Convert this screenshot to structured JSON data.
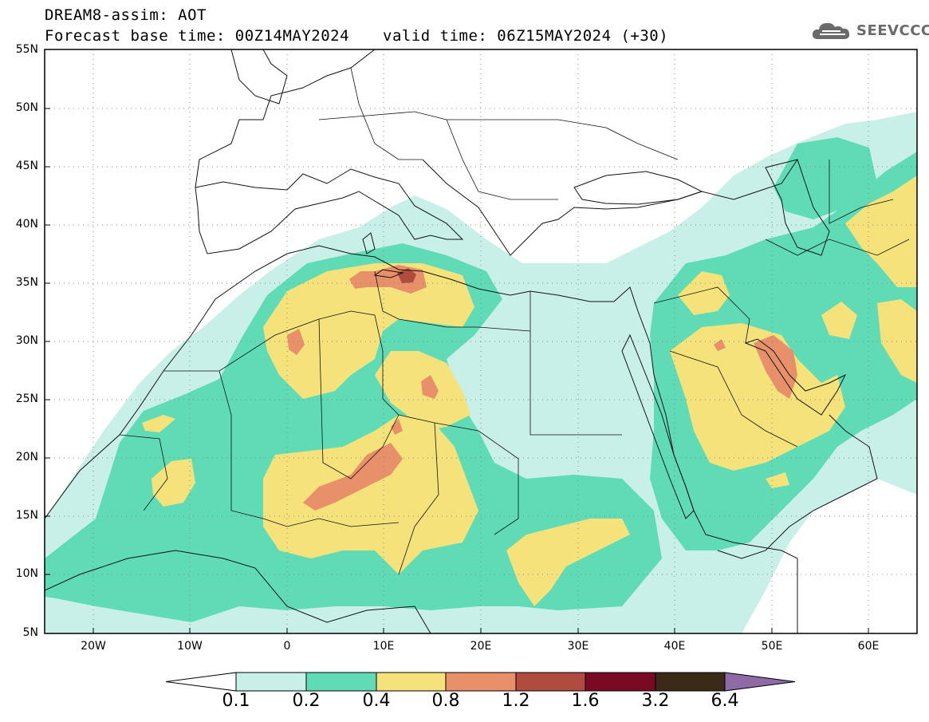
{
  "header": {
    "title": "DREAM8-assim: AOT",
    "base_time": "Forecast base time: 00Z14MAY2024",
    "valid_time": "valid time: 06Z15MAY2024 (+30)"
  },
  "logo": {
    "text": "SEEVCCC",
    "icon": "cloud-icon"
  },
  "map": {
    "variable": "AOT",
    "lon_range": [
      -25,
      65
    ],
    "lat_range": [
      5,
      55
    ],
    "lat_labels": [
      "55N",
      "50N",
      "45N",
      "40N",
      "35N",
      "30N",
      "25N",
      "20N",
      "15N",
      "10N",
      "5N"
    ],
    "lon_labels": [
      "20W",
      "10W",
      "0",
      "10E",
      "20E",
      "30E",
      "40E",
      "50E",
      "60E"
    ],
    "grid": "dotted"
  },
  "colorbar": {
    "labels": [
      "0.1",
      "0.2",
      "0.4",
      "0.8",
      "1.2",
      "1.6",
      "3.2",
      "6.4"
    ],
    "colors": [
      "#ffffff",
      "#c9f0e8",
      "#5fdcb6",
      "#f5e27a",
      "#e8906a",
      "#b04c3e",
      "#7a0a24",
      "#3c2a18",
      "#8e6aa6"
    ]
  }
}
